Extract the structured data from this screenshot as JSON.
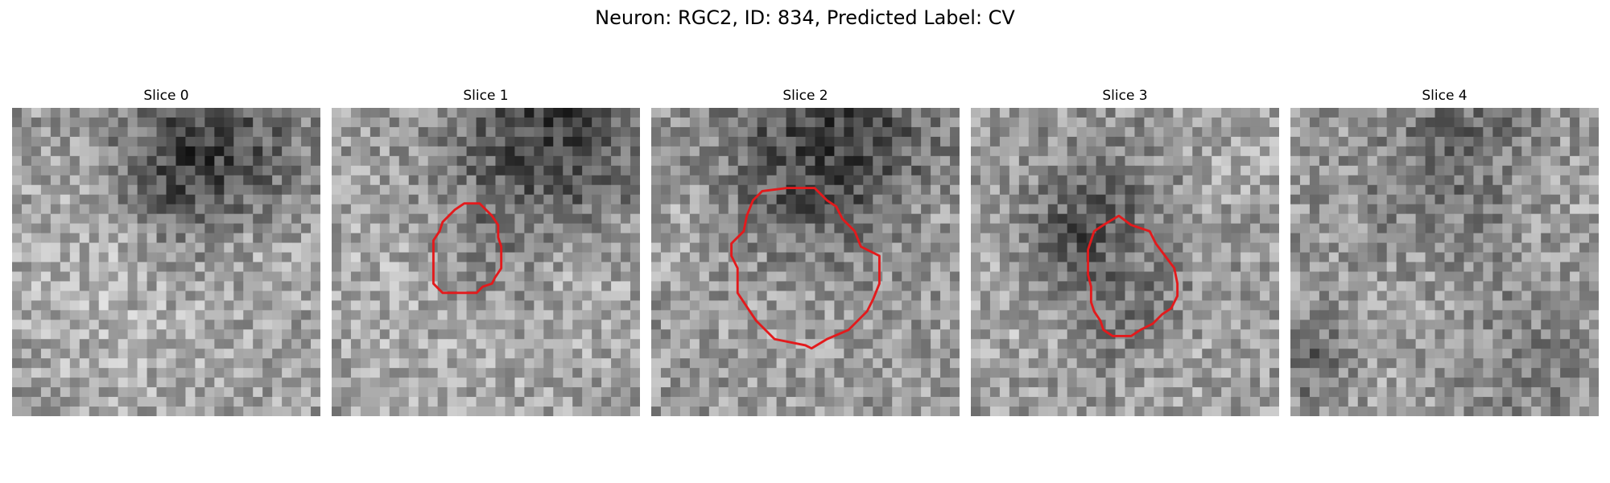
{
  "figure": {
    "title": "Neuron: RGC2, ID: 834, Predicted Label: CV",
    "contour_color": "#e31a1c"
  },
  "panels": [
    {
      "title": "Slice 0",
      "has_contour": false,
      "seed": 11,
      "dark_blobs": [
        [
          0.65,
          0.1,
          0.22,
          0.8
        ],
        [
          0.55,
          0.25,
          0.12,
          0.4
        ]
      ],
      "bright_blobs": [
        [
          0.2,
          0.5,
          0.25,
          0.35
        ],
        [
          0.85,
          0.45,
          0.12,
          0.35
        ],
        [
          0.5,
          0.75,
          0.3,
          0.25
        ]
      ]
    },
    {
      "title": "Slice 1",
      "has_contour": true,
      "seed": 23,
      "dark_blobs": [
        [
          0.72,
          0.08,
          0.22,
          0.95
        ],
        [
          0.5,
          0.47,
          0.17,
          0.25
        ]
      ],
      "bright_blobs": [
        [
          0.15,
          0.55,
          0.2,
          0.35
        ],
        [
          0.82,
          0.58,
          0.15,
          0.4
        ],
        [
          0.5,
          0.85,
          0.25,
          0.25
        ]
      ],
      "contour": [
        [
          0.4,
          0.33
        ],
        [
          0.43,
          0.31
        ],
        [
          0.48,
          0.31
        ],
        [
          0.52,
          0.35
        ],
        [
          0.54,
          0.38
        ],
        [
          0.54,
          0.42
        ],
        [
          0.55,
          0.45
        ],
        [
          0.55,
          0.52
        ],
        [
          0.53,
          0.55
        ],
        [
          0.52,
          0.57
        ],
        [
          0.49,
          0.58
        ],
        [
          0.47,
          0.6
        ],
        [
          0.36,
          0.6
        ],
        [
          0.33,
          0.57
        ],
        [
          0.33,
          0.43
        ],
        [
          0.35,
          0.4
        ],
        [
          0.36,
          0.37
        ],
        [
          0.38,
          0.35
        ]
      ]
    },
    {
      "title": "Slice 2",
      "has_contour": true,
      "seed": 37,
      "dark_blobs": [
        [
          0.6,
          0.05,
          0.25,
          0.85
        ],
        [
          0.5,
          0.35,
          0.2,
          0.35
        ]
      ],
      "bright_blobs": [
        [
          0.45,
          0.55,
          0.18,
          0.35
        ],
        [
          0.9,
          0.4,
          0.12,
          0.3
        ],
        [
          0.1,
          0.4,
          0.12,
          0.3
        ]
      ],
      "contour": [
        [
          0.33,
          0.3
        ],
        [
          0.36,
          0.27
        ],
        [
          0.44,
          0.26
        ],
        [
          0.53,
          0.26
        ],
        [
          0.57,
          0.3
        ],
        [
          0.6,
          0.32
        ],
        [
          0.62,
          0.36
        ],
        [
          0.66,
          0.4
        ],
        [
          0.68,
          0.45
        ],
        [
          0.74,
          0.48
        ],
        [
          0.74,
          0.57
        ],
        [
          0.72,
          0.62
        ],
        [
          0.7,
          0.66
        ],
        [
          0.64,
          0.72
        ],
        [
          0.57,
          0.75
        ],
        [
          0.52,
          0.78
        ],
        [
          0.5,
          0.77
        ],
        [
          0.4,
          0.75
        ],
        [
          0.37,
          0.72
        ],
        [
          0.34,
          0.69
        ],
        [
          0.32,
          0.66
        ],
        [
          0.3,
          0.63
        ],
        [
          0.28,
          0.6
        ],
        [
          0.28,
          0.52
        ],
        [
          0.26,
          0.48
        ],
        [
          0.26,
          0.44
        ],
        [
          0.3,
          0.4
        ],
        [
          0.31,
          0.35
        ]
      ]
    },
    {
      "title": "Slice 3",
      "has_contour": true,
      "seed": 51,
      "dark_blobs": [
        [
          0.45,
          0.3,
          0.15,
          0.5
        ],
        [
          0.3,
          0.45,
          0.1,
          0.5
        ],
        [
          0.5,
          0.65,
          0.15,
          0.35
        ]
      ],
      "bright_blobs": [
        [
          0.15,
          0.65,
          0.15,
          0.35
        ],
        [
          0.85,
          0.2,
          0.12,
          0.3
        ],
        [
          0.75,
          0.85,
          0.15,
          0.25
        ]
      ],
      "contour": [
        [
          0.4,
          0.4
        ],
        [
          0.43,
          0.38
        ],
        [
          0.48,
          0.35
        ],
        [
          0.52,
          0.38
        ],
        [
          0.58,
          0.4
        ],
        [
          0.6,
          0.44
        ],
        [
          0.63,
          0.48
        ],
        [
          0.66,
          0.52
        ],
        [
          0.67,
          0.57
        ],
        [
          0.67,
          0.61
        ],
        [
          0.65,
          0.65
        ],
        [
          0.62,
          0.67
        ],
        [
          0.59,
          0.7
        ],
        [
          0.55,
          0.72
        ],
        [
          0.52,
          0.74
        ],
        [
          0.46,
          0.74
        ],
        [
          0.43,
          0.72
        ],
        [
          0.42,
          0.69
        ],
        [
          0.4,
          0.66
        ],
        [
          0.39,
          0.63
        ],
        [
          0.39,
          0.58
        ],
        [
          0.38,
          0.54
        ],
        [
          0.38,
          0.46
        ]
      ]
    },
    {
      "title": "Slice 4",
      "has_contour": false,
      "seed": 67,
      "dark_blobs": [
        [
          0.5,
          0.15,
          0.25,
          0.6
        ],
        [
          0.05,
          0.8,
          0.1,
          0.6
        ],
        [
          0.75,
          0.8,
          0.18,
          0.35
        ]
      ],
      "bright_blobs": [
        [
          0.25,
          0.1,
          0.15,
          0.35
        ],
        [
          0.85,
          0.25,
          0.15,
          0.4
        ],
        [
          0.5,
          0.6,
          0.25,
          0.3
        ]
      ]
    }
  ]
}
